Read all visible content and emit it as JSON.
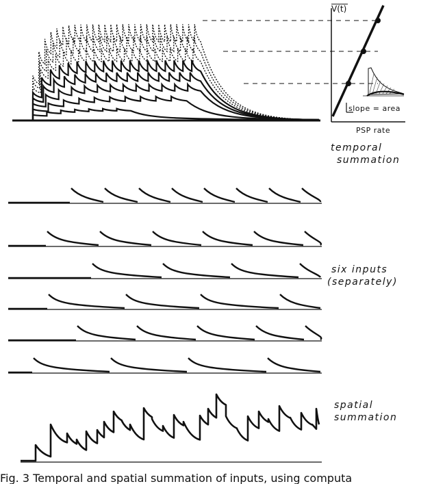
{
  "labels": {
    "vt": "V(t)",
    "slope": "slope = area",
    "psp_rate": "PSP rate",
    "temporal": [
      "temporal",
      "summation"
    ],
    "six_inputs": [
      "six inputs",
      "(separately)"
    ],
    "spatial": [
      "spatial",
      "summation"
    ],
    "caption": "Fig. 3 Temporal and spatial summation of inputs, using computa"
  },
  "colors": {
    "ink": "#111111",
    "paper": "#ffffff"
  }
}
